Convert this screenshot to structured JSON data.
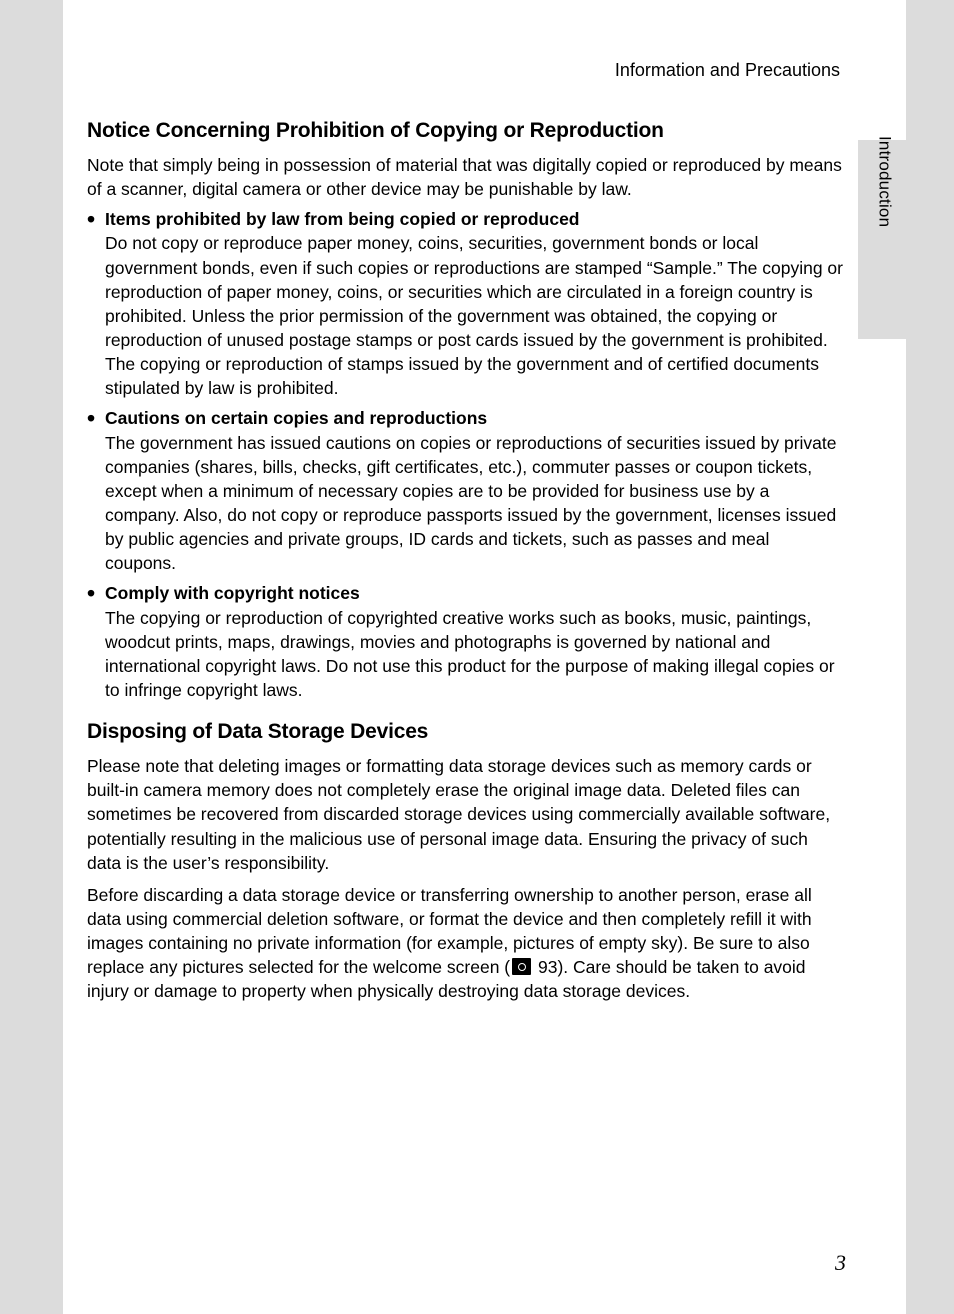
{
  "header": {
    "title": "Information and Precautions"
  },
  "sideTab": {
    "label": "Introduction"
  },
  "section1": {
    "title": "Notice Concerning Prohibition of Copying or Reproduction",
    "intro": "Note that simply being in possession of material that was digitally copied or reproduced by means of a scanner, digital camera or other device may be punishable by law.",
    "items": [
      {
        "title": "Items prohibited by law from being copied or reproduced",
        "body": "Do not copy or reproduce paper money, coins, securities, government bonds or local government bonds, even if such copies or reproductions are stamped “Sample.” The copying or reproduction of paper money, coins, or securities which are circulated in a foreign country is prohibited. Unless the prior permission of the government was obtained, the copying or reproduction of unused postage stamps or post cards issued by the government is prohibited. The copying or reproduction of stamps issued by the government and of certified documents stipulated by law is prohibited."
      },
      {
        "title": "Cautions on certain copies and reproductions",
        "body": "The government has issued cautions on copies or reproductions of securities issued by private companies (shares, bills, checks, gift certificates, etc.), commuter passes or coupon tickets, except when a minimum of necessary copies are to be provided for business use by a company. Also, do not copy or reproduce passports issued by the government, licenses issued by public agencies and private groups, ID cards and tickets, such as passes and meal coupons."
      },
      {
        "title": "Comply with copyright notices",
        "body": "The copying or reproduction of copyrighted creative works such as books, music, paintings, woodcut prints, maps, drawings, movies and photographs is governed by national and international copyright laws. Do not use this product for the purpose of making illegal copies or to infringe copyright laws."
      }
    ]
  },
  "section2": {
    "title": "Disposing of Data Storage Devices",
    "para1": "Please note that deleting images or formatting data storage devices such as memory cards or built-in camera memory does not completely erase the original image data. Deleted files can sometimes be recovered from discarded storage devices using commercially available software, potentially resulting in the malicious use of personal image data. Ensuring the privacy of such data is the user’s responsibility.",
    "para2_a": "Before discarding a data storage device or transferring ownership to another person, erase all data using commercial deletion software, or format the device and then completely refill it with images containing no private information (for example, pictures of empty sky). Be sure to also replace any pictures selected for the welcome screen (",
    "para2_ref": "93",
    "para2_b": "). Care should be taken to avoid injury or damage to property when physically destroying data storage devices."
  },
  "pageNumber": "3",
  "styling": {
    "pageWidth": 954,
    "pageHeight": 1314,
    "backgroundColor": "#dcdcdc",
    "pageColor": "#ffffff",
    "textColor": "#000000",
    "bodyFontSize": 17.5,
    "titleFontSize": 21,
    "headerFontSize": 18,
    "pageNumberFontSize": 22,
    "lineHeight": 1.38
  }
}
